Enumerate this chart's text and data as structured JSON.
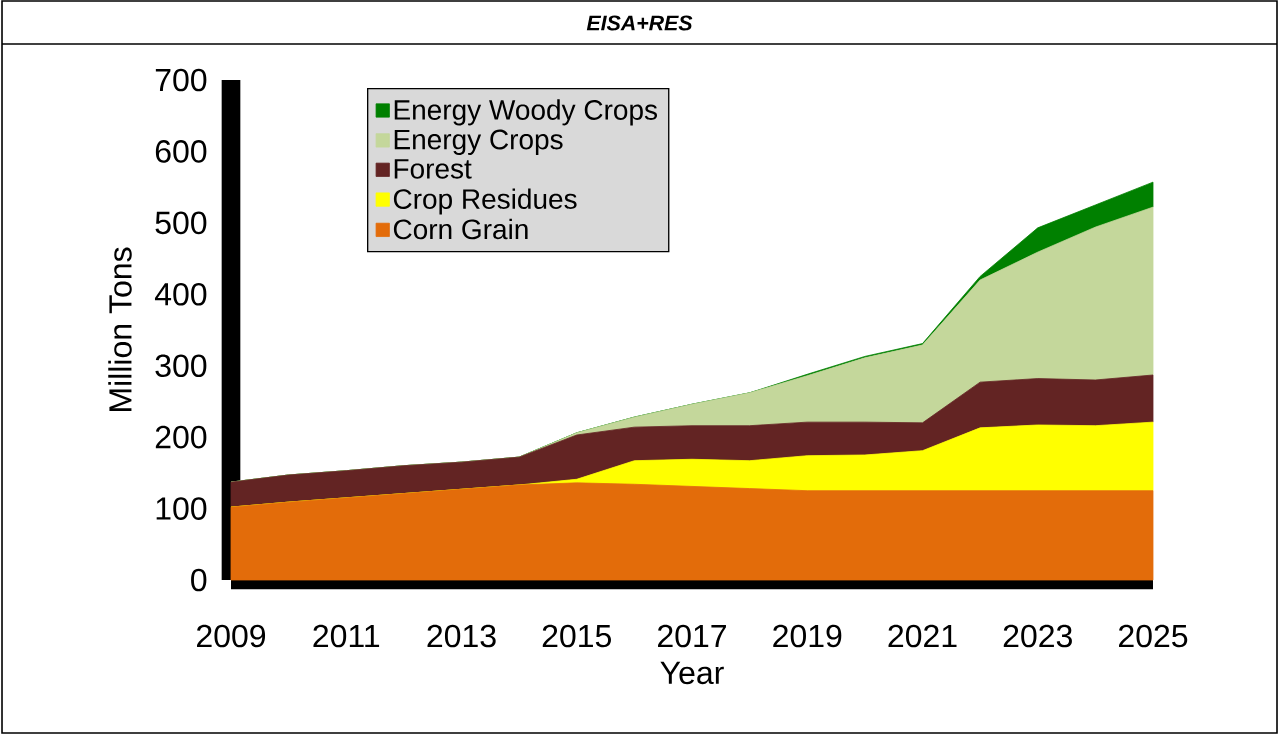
{
  "chart_data": {
    "type": "area",
    "title": "EISA+RES",
    "xlabel": "Year",
    "ylabel": "Million Tons",
    "x": [
      2009,
      2010,
      2011,
      2012,
      2013,
      2014,
      2015,
      2016,
      2017,
      2018,
      2019,
      2020,
      2021,
      2022,
      2023,
      2024,
      2025
    ],
    "stacked": true,
    "series": [
      {
        "name": "Corn Grain",
        "color": "#e36c0a",
        "values": [
          102,
          109,
          115,
          121,
          127,
          133,
          136,
          134,
          131,
          128,
          125,
          125,
          125,
          125,
          125,
          125,
          125
        ]
      },
      {
        "name": "Crop Residues",
        "color": "#ffff00",
        "values": [
          0,
          0,
          0,
          0,
          0,
          0,
          5,
          33,
          38,
          39,
          49,
          50,
          56,
          88,
          92,
          91,
          96
        ]
      },
      {
        "name": "Forest",
        "color": "#632423",
        "values": [
          35,
          38,
          38,
          39,
          38,
          39,
          62,
          47,
          47,
          49,
          47,
          46,
          39,
          64,
          65,
          64,
          66
        ]
      },
      {
        "name": "Energy Crops",
        "color": "#c4d79b",
        "values": [
          0,
          0,
          0,
          0,
          0,
          0,
          3,
          14,
          30,
          46,
          65,
          90,
          109,
          143,
          177,
          214,
          235
        ]
      },
      {
        "name": "Energy Woody Crops",
        "color": "#008000",
        "values": [
          0,
          0,
          0,
          0,
          0,
          0,
          0,
          0,
          0,
          0,
          2,
          2,
          2,
          5,
          34,
          31,
          35
        ]
      }
    ],
    "xlim": [
      2009,
      2025
    ],
    "xticks": [
      2009,
      2011,
      2013,
      2015,
      2017,
      2019,
      2021,
      2023,
      2025
    ],
    "ylim": [
      0,
      700
    ],
    "yticks": [
      0,
      100,
      200,
      300,
      400,
      500,
      600,
      700
    ],
    "legend": "top left"
  }
}
